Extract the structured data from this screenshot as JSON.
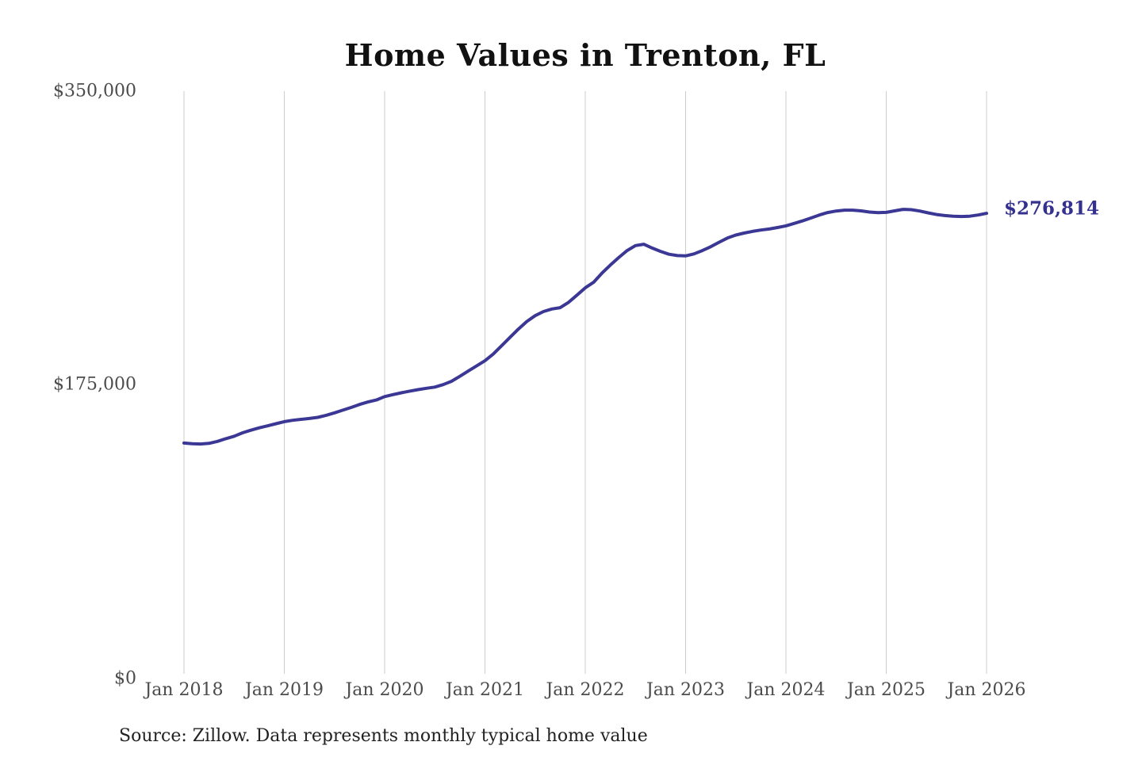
{
  "chart_data": {
    "type": "line",
    "title": "Home Values in Trenton, FL",
    "end_label": "$276,814",
    "x_tick_labels": [
      "Jan 2018",
      "Jan 2019",
      "Jan 2020",
      "Jan 2021",
      "Jan 2022",
      "Jan 2023",
      "Jan 2024",
      "Jan 2025",
      "Jan 2026"
    ],
    "y_ticks": [
      {
        "label": "$350,000",
        "value": 350000
      },
      {
        "label": "$175,000",
        "value": 175000
      },
      {
        "label": "$0",
        "value": 0
      }
    ],
    "ylim": [
      0,
      350000
    ],
    "grid": "vertical-gridlines-only",
    "legend": "none",
    "series": [
      {
        "name": "Monthly typical home value",
        "interval": "monthly",
        "start": "Jan 2018",
        "end": "Jan 2026",
        "final_value": 276814,
        "values": [
          139200,
          138800,
          138600,
          139000,
          140200,
          141800,
          143300,
          145300,
          146900,
          148300,
          149500,
          150800,
          152000,
          152800,
          153400,
          153900,
          154600,
          155800,
          157300,
          158900,
          160500,
          162300,
          163800,
          165000,
          167000,
          168200,
          169300,
          170300,
          171200,
          172000,
          172700,
          174200,
          176200,
          179200,
          182300,
          185400,
          188500,
          192500,
          197500,
          202500,
          207500,
          212000,
          215500,
          218000,
          219500,
          220300,
          223500,
          227800,
          232200,
          235500,
          241000,
          245800,
          250300,
          254500,
          257500,
          258300,
          256000,
          254000,
          252300,
          251500,
          251300,
          252500,
          254500,
          256800,
          259500,
          262000,
          263800,
          265000,
          266000,
          266800,
          267400,
          268300,
          269300,
          270800,
          272300,
          274000,
          275800,
          277300,
          278200,
          278700,
          278700,
          278300,
          277600,
          277200,
          277400,
          278300,
          279200,
          279000,
          278200,
          277100,
          276100,
          275500,
          275100,
          274900,
          275100,
          275800,
          276814
        ]
      }
    ]
  },
  "source_note": "Source: Zillow. Data represents monthly typical home value",
  "colors": {
    "line": "#3b3794",
    "end_label": "#34308e",
    "gridline": "#cccccc",
    "title": "#111111",
    "axis_labels": "#4c4c4c",
    "source": "#222222",
    "background": "#ffffff"
  }
}
